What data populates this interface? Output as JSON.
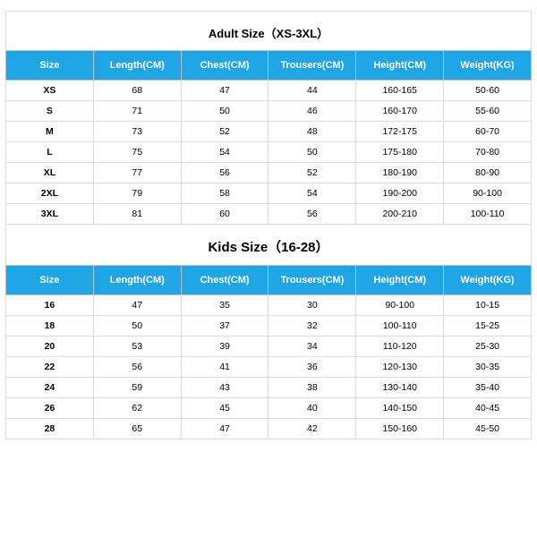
{
  "adult": {
    "title": "Adult Size（XS-3XL）",
    "title_fontsize": 13,
    "header_bg": "#1fa4e5",
    "header_fg": "#ffffff",
    "columns": [
      "Size",
      "Length(CM)",
      "Chest(CM)",
      "Trousers(CM)",
      "Height(CM)",
      "Weight(KG)"
    ],
    "rows": [
      [
        "XS",
        "68",
        "47",
        "44",
        "160-165",
        "50-60"
      ],
      [
        "S",
        "71",
        "50",
        "46",
        "160-170",
        "55-60"
      ],
      [
        "M",
        "73",
        "52",
        "48",
        "172-175",
        "60-70"
      ],
      [
        "L",
        "75",
        "54",
        "50",
        "175-180",
        "70-80"
      ],
      [
        "XL",
        "77",
        "56",
        "52",
        "180-190",
        "80-90"
      ],
      [
        "2XL",
        "79",
        "58",
        "54",
        "190-200",
        "90-100"
      ],
      [
        "3XL",
        "81",
        "60",
        "56",
        "200-210",
        "100-110"
      ]
    ]
  },
  "kids": {
    "title": "Kids Size（16-28）",
    "title_fontsize": 15,
    "header_bg": "#1fa4e5",
    "header_fg": "#ffffff",
    "columns": [
      "Size",
      "Length(CM)",
      "Chest(CM)",
      "Trousers(CM)",
      "Height(CM)",
      "Weight(KG)"
    ],
    "rows": [
      [
        "16",
        "47",
        "35",
        "30",
        "90-100",
        "10-15"
      ],
      [
        "18",
        "50",
        "37",
        "32",
        "100-110",
        "15-25"
      ],
      [
        "20",
        "53",
        "39",
        "34",
        "110-120",
        "25-30"
      ],
      [
        "22",
        "56",
        "41",
        "36",
        "120-130",
        "30-35"
      ],
      [
        "24",
        "59",
        "43",
        "38",
        "130-140",
        "35-40"
      ],
      [
        "26",
        "62",
        "45",
        "40",
        "140-150",
        "40-45"
      ],
      [
        "28",
        "65",
        "47",
        "42",
        "150-160",
        "45-50"
      ]
    ]
  },
  "styling": {
    "border_color": "#dcdcdc",
    "header_border_color": "#b8c4ca",
    "cell_fontsize": 10.5,
    "header_fontsize": 11,
    "background": "#ffffff"
  }
}
